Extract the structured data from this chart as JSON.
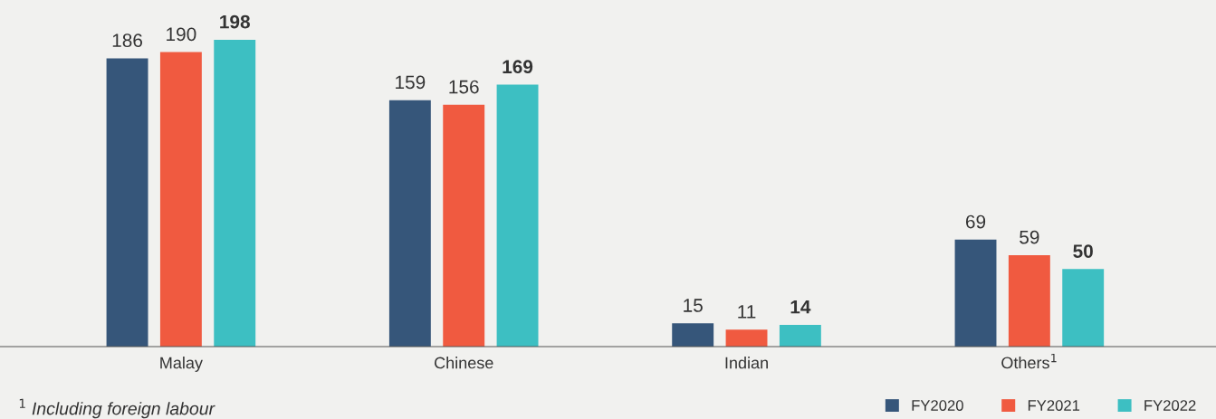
{
  "chart_data": {
    "type": "bar",
    "categories": [
      "Malay",
      "Chinese",
      "Indian",
      "Others$^{1}$"
    ],
    "series": [
      {
        "name": "FY2020",
        "color": "#36567a",
        "values": [
          186,
          159,
          15,
          69
        ]
      },
      {
        "name": "FY2021",
        "color": "#f05a40",
        "values": [
          190,
          156,
          11,
          59
        ]
      },
      {
        "name": "FY2022",
        "color": "#3dbfc2",
        "values": [
          198,
          169,
          14,
          50
        ]
      }
    ],
    "data_labels": true,
    "legend": "bottom right",
    "annotations": [
      "$^{1}$ Including foreign labour"
    ]
  }
}
